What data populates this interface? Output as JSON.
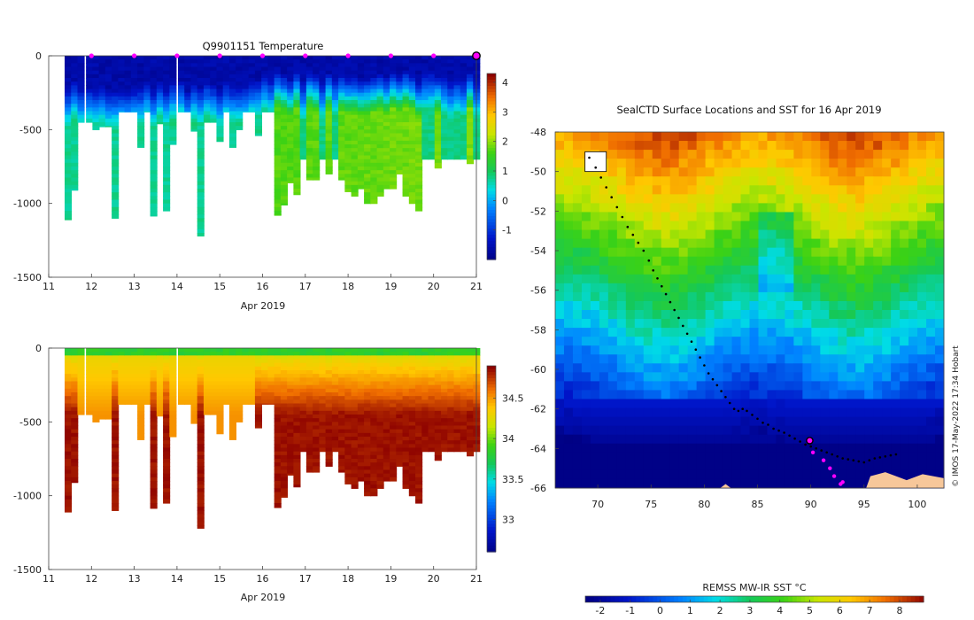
{
  "chart_data": [
    {
      "type": "heatmap",
      "title": "Q9901151  Temperature",
      "xlabel": "Apr 2019",
      "ylabel": "",
      "xlim": [
        11,
        21
      ],
      "ylim": [
        -1500,
        0
      ],
      "x_ticks": [
        "11",
        "12",
        "13",
        "14",
        "15",
        "16",
        "17",
        "18",
        "19",
        "20",
        "21"
      ],
      "y_ticks": [
        "0",
        "-500",
        "-1000",
        "-1500"
      ],
      "colorbar": {
        "min": -2,
        "max": 4.3,
        "ticks": [
          "4",
          "3",
          "2",
          "1",
          "0",
          "-1"
        ]
      },
      "profiles": {
        "day": [
          11.45,
          11.6,
          11.75,
          11.95,
          12.1,
          12.25,
          12.4,
          12.55,
          12.7,
          12.85,
          13.0,
          13.15,
          13.3,
          13.45,
          13.6,
          13.75,
          13.9,
          14.1,
          14.25,
          14.4,
          14.55,
          14.7,
          14.85,
          15.0,
          15.15,
          15.3,
          15.45,
          15.6,
          15.75,
          15.9,
          16.05,
          16.2,
          16.35,
          16.5,
          16.65,
          16.8,
          16.95,
          17.1,
          17.25,
          17.4,
          17.55,
          17.7,
          17.85,
          18.0,
          18.15,
          18.3,
          18.45,
          18.6,
          18.75,
          18.9,
          19.05,
          19.2,
          19.35,
          19.5,
          19.65,
          19.8,
          19.95,
          20.1,
          20.25,
          20.4,
          20.55,
          20.7,
          20.85,
          21.0
        ],
        "max_depth": [
          1110,
          910,
          450,
          450,
          500,
          480,
          480,
          1100,
          380,
          380,
          380,
          620,
          380,
          1085,
          460,
          1050,
          600,
          380,
          380,
          510,
          1220,
          450,
          450,
          580,
          380,
          620,
          500,
          380,
          380,
          540,
          380,
          380,
          1080,
          1010,
          860,
          940,
          700,
          840,
          840,
          700,
          800,
          700,
          840,
          920,
          950,
          900,
          1000,
          1000,
          950,
          900,
          900,
          800,
          950,
          1000,
          1050,
          700,
          700,
          760,
          700,
          700,
          700,
          700,
          730,
          700
        ],
        "temperature_range_c": [
          -1.9,
          4.2
        ]
      },
      "surfacing_markers_day": [
        12,
        13,
        14,
        15,
        16,
        17,
        18,
        19,
        20
      ],
      "latest_marker_day": 21
    },
    {
      "type": "heatmap",
      "title": "",
      "xlabel": "Apr 2019",
      "ylabel": "",
      "xlim": [
        11,
        21
      ],
      "ylim": [
        -1500,
        0
      ],
      "x_ticks": [
        "11",
        "12",
        "13",
        "14",
        "15",
        "16",
        "17",
        "18",
        "19",
        "20",
        "21"
      ],
      "y_ticks": [
        "0",
        "-500",
        "-1000",
        "-1500"
      ],
      "colorbar": {
        "min": 32.6,
        "max": 34.9,
        "ticks": [
          "34.5",
          "34",
          "33.5",
          "33"
        ]
      },
      "salinity_range": [
        33.7,
        34.75
      ]
    },
    {
      "type": "heatmap",
      "title": "SealCTD Surface Locations and SST for 16 Apr 2019",
      "xlabel": "",
      "ylabel": "",
      "xlim": [
        66,
        102.5
      ],
      "ylim": [
        -66,
        -48
      ],
      "x_ticks": [
        "70",
        "75",
        "80",
        "85",
        "90",
        "95",
        "100"
      ],
      "y_ticks": [
        "-48",
        "-50",
        "-52",
        "-54",
        "-56",
        "-58",
        "-60",
        "-62",
        "-64",
        "-66"
      ],
      "colorbar": {
        "label": "REMSS MW-IR SST °C",
        "min": -2.5,
        "max": 8.8,
        "ticks": [
          "-2",
          "-1",
          "0",
          "1",
          "2",
          "3",
          "4",
          "5",
          "6",
          "7",
          "8"
        ]
      },
      "track": {
        "lon": [
          69.2,
          69.8,
          70.3,
          70.8,
          71.3,
          71.8,
          72.3,
          72.8,
          73.3,
          73.8,
          74.3,
          74.8,
          75.2,
          75.6,
          76.0,
          76.4,
          76.8,
          77.2,
          77.6,
          78.0,
          78.4,
          78.8,
          79.2,
          79.6,
          80.0,
          80.4,
          80.8,
          81.2,
          81.6,
          82.0,
          82.4,
          82.8,
          83.2,
          83.6,
          84.0,
          84.5,
          85.0,
          85.5,
          86.0,
          86.5,
          87.0,
          87.5,
          88.0,
          88.5,
          89.0,
          89.5,
          90.0,
          90.5,
          91.0,
          91.5,
          92.0,
          92.5,
          93.0,
          93.5,
          94.0,
          94.5,
          95.0,
          95.5,
          96.0,
          96.5,
          97.0,
          97.5,
          98.0
        ],
        "lat": [
          -49.3,
          -49.8,
          -50.3,
          -50.8,
          -51.3,
          -51.8,
          -52.3,
          -52.8,
          -53.2,
          -53.6,
          -54.0,
          -54.5,
          -55.0,
          -55.4,
          -55.8,
          -56.2,
          -56.6,
          -57.0,
          -57.4,
          -57.8,
          -58.2,
          -58.6,
          -59.0,
          -59.4,
          -59.8,
          -60.2,
          -60.5,
          -60.8,
          -61.1,
          -61.4,
          -61.7,
          -62.0,
          -62.1,
          -62.0,
          -62.1,
          -62.3,
          -62.5,
          -62.7,
          -62.8,
          -63.0,
          -63.1,
          -63.2,
          -63.35,
          -63.5,
          -63.65,
          -63.8,
          -63.9,
          -64.0,
          -64.1,
          -64.2,
          -64.3,
          -64.4,
          -64.5,
          -64.55,
          -64.6,
          -64.65,
          -64.7,
          -64.6,
          -64.5,
          -64.45,
          -64.4,
          -64.35,
          -64.3
        ]
      },
      "recent_positions": {
        "lon": [
          90.2,
          91.2,
          91.8,
          92.2,
          92.8,
          93.0
        ],
        "lat": [
          -64.2,
          -64.6,
          -65.0,
          -65.4,
          -65.8,
          -65.7
        ]
      },
      "current_position": {
        "lon": 89.9,
        "lat": -63.6
      }
    }
  ],
  "credit": "© IMOS 17-May-2022 17:34 Hobart",
  "colors": {
    "plot_bg": "#ffffff",
    "marker": "#ff00ff",
    "land": "#f7c79a"
  }
}
